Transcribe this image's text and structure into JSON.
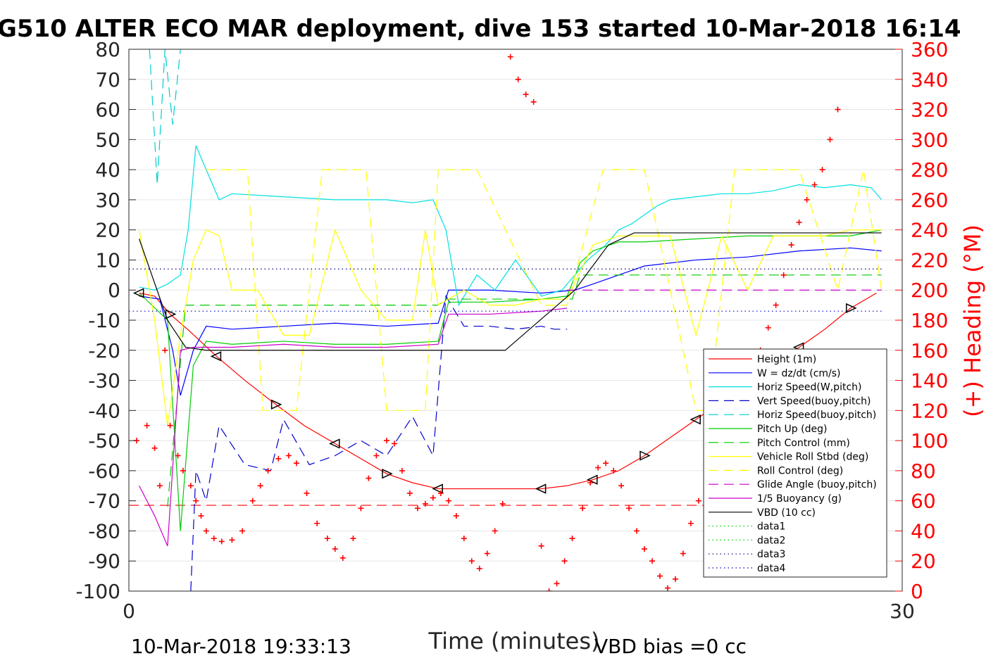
{
  "chart_data": {
    "type": "line",
    "title": "G510 ALTER ECO MAR deployment, dive 153 started 10-Mar-2018 16:14",
    "xlabel": "Time (minutes)",
    "ylabel_right": "(+) Heading (°M)",
    "xlim": [
      0,
      30
    ],
    "ylim": [
      -100,
      80
    ],
    "ylim_right": [
      0,
      360
    ],
    "x_ticks": [
      "0",
      "30"
    ],
    "y_ticks": [
      "80",
      "70",
      "60",
      "50",
      "40",
      "30",
      "20",
      "10",
      "0",
      "-10",
      "-20",
      "-30",
      "-40",
      "-50",
      "-60",
      "-70",
      "-80",
      "-90",
      "-100"
    ],
    "y_right_ticks": [
      "360",
      "340",
      "320",
      "300",
      "280",
      "260",
      "240",
      "220",
      "200",
      "180",
      "160",
      "140",
      "120",
      "100",
      "80",
      "60",
      "40",
      "20",
      "0"
    ],
    "grid": "horizontal",
    "legend_position": "lower-right",
    "footer_left": "10-Mar-2018 19:33:13",
    "footer_right": "VBD bias =0 cc",
    "series": [
      {
        "name": "Height (1m)",
        "color": "#ff0000",
        "style": "solid",
        "x": [
          0.4,
          1.0,
          1.6,
          2.4,
          3.4,
          4.5,
          5.7,
          6.8,
          8.0,
          9.0,
          10.0,
          11.0,
          12.0,
          14.0,
          16.0,
          17.0,
          18.0,
          19.0,
          20.0,
          21.0,
          22.0,
          23.0,
          24.0,
          25.0,
          26.0,
          27.0,
          28.0,
          29.0
        ],
        "y": [
          -1,
          -2,
          -8,
          -14,
          -22,
          -30,
          -38,
          -45,
          -51,
          -56,
          -61,
          -64,
          -66,
          -66,
          -66,
          -65,
          -63,
          -60,
          -55,
          -49,
          -43,
          -37,
          -31,
          -25,
          -19,
          -13,
          -6,
          -1
        ]
      },
      {
        "name": "W = dz/dt (cm/s)",
        "color": "#0000ff",
        "style": "solid",
        "x": [
          0.4,
          1.2,
          1.7,
          2.0,
          2.5,
          3,
          4,
          6,
          8,
          10,
          12,
          12.4,
          14,
          16,
          17.3,
          18,
          19,
          20,
          22,
          24,
          26,
          28,
          29.2
        ],
        "y": [
          -2,
          -3,
          -20,
          -35,
          -20,
          -12,
          -13,
          -12,
          -11,
          -12,
          -11,
          0,
          0,
          -1,
          0,
          2,
          5,
          8,
          10,
          11,
          13,
          14,
          13
        ]
      },
      {
        "name": "Horiz Speed(W,pitch)",
        "color": "#00e0e0",
        "style": "solid",
        "x": [
          0.4,
          1,
          1.5,
          2,
          2.3,
          2.6,
          3,
          3.5,
          4,
          6,
          8,
          10,
          11,
          11.8,
          12.3,
          12.8,
          13.5,
          14.2,
          15,
          16,
          16.8,
          17.3,
          17.8,
          18.5,
          19,
          19.5,
          20,
          20.5,
          21,
          22,
          23,
          24,
          25,
          26,
          27,
          28,
          28.8,
          29.2
        ],
        "y": [
          1,
          0,
          2,
          5,
          20,
          48,
          40,
          30,
          32,
          31,
          30,
          30,
          29,
          30,
          20,
          -5,
          5,
          0,
          10,
          -2,
          0,
          5,
          10,
          15,
          20,
          22,
          25,
          28,
          30,
          31,
          32,
          32,
          33,
          35,
          34,
          35,
          34,
          30
        ]
      },
      {
        "name": "Vert Speed(buoy,pitch)",
        "color": "#0000cc",
        "style": "dash",
        "x": [
          2.4,
          2.6,
          3,
          3.5,
          4.5,
          5.5,
          6,
          7,
          8,
          9,
          10,
          11,
          11.8,
          12.3,
          13,
          14,
          15,
          16,
          16.5,
          17
        ],
        "y": [
          -100,
          -60,
          -70,
          -45,
          -58,
          -60,
          -43,
          -58,
          -55,
          -50,
          -55,
          -42,
          -55,
          -2,
          -12,
          -12,
          -13,
          -12,
          -13,
          -13
        ]
      },
      {
        "name": "Horiz Speed(buoy,pitch)",
        "color": "#00cccc",
        "style": "dash",
        "x": [
          0.8,
          1.1,
          1.4,
          1.7,
          2.0
        ],
        "y": [
          80,
          35,
          80,
          55,
          80
        ]
      },
      {
        "name": "Pitch Up (deg)",
        "color": "#00cc00",
        "style": "solid",
        "x": [
          0.4,
          1.5,
          2,
          2.5,
          3,
          4,
          6,
          8,
          10,
          12,
          12.4,
          14,
          16,
          17,
          17.5,
          18,
          19,
          20,
          22,
          24,
          26,
          28,
          29.2
        ],
        "y": [
          -1,
          -10,
          -80,
          -25,
          -17,
          -18,
          -17,
          -18,
          -18,
          -17,
          -4,
          -4,
          -3,
          -2,
          9,
          13,
          16,
          16,
          17,
          18,
          18,
          18,
          20
        ]
      },
      {
        "name": "Pitch Control (mm)",
        "color": "#00cc00",
        "style": "dash",
        "x": [
          1.5,
          2.2,
          2.8,
          12.0,
          12.3,
          17.2,
          17.5,
          29.2
        ],
        "y": [
          -72,
          -5,
          -5,
          -5,
          -3,
          -3,
          5,
          5
        ]
      },
      {
        "name": "Vehicle Roll Stbd (deg)",
        "color": "#ffff00",
        "style": "solid",
        "x": [
          0.4,
          1.0,
          1.5,
          2,
          2.5,
          3,
          3.5,
          4,
          5,
          6,
          7,
          8,
          9,
          10,
          11,
          11.5,
          12,
          13,
          14,
          15,
          16,
          17,
          18,
          19,
          20,
          21,
          22,
          23,
          24,
          25,
          26,
          27,
          28,
          29.2
        ],
        "y": [
          20,
          -10,
          -45,
          -15,
          10,
          20,
          18,
          0,
          0,
          -15,
          -15,
          20,
          0,
          -10,
          -10,
          20,
          -5,
          0,
          -5,
          -5,
          -3,
          -3,
          15,
          18,
          18,
          18,
          -15,
          18,
          0,
          18,
          18,
          18,
          20,
          20
        ]
      },
      {
        "name": "Roll Control (deg)",
        "color": "#ffff00",
        "style": "dash",
        "x": [
          3,
          3.6,
          4.6,
          5.2,
          6.5,
          7.5,
          9.2,
          10,
          11.5,
          12,
          13.5,
          16,
          17,
          18.4,
          19,
          20,
          22,
          22.5,
          23.5,
          24.5,
          26,
          27.5,
          28.5,
          29.2
        ],
        "y": [
          40,
          40,
          40,
          -40,
          -40,
          40,
          40,
          -40,
          -40,
          40,
          40,
          -5,
          -5,
          40,
          40,
          40,
          -40,
          -40,
          40,
          40,
          40,
          0,
          40,
          0
        ]
      },
      {
        "name": "Glide Angle (buoy,pitch)",
        "color": "#cc00cc",
        "style": "dash",
        "x": [
          17.0,
          29.2
        ],
        "y": [
          0,
          0
        ]
      },
      {
        "name": "1/5 Buoyancy (g)",
        "color": "#cc00cc",
        "style": "solid",
        "x": [
          0.4,
          1.0,
          1.5,
          2,
          2.5,
          3,
          4,
          6,
          8,
          10,
          12,
          12.4,
          14,
          16,
          17
        ],
        "y": [
          -65,
          -75,
          -85,
          -20,
          -19,
          -19,
          -19,
          -18,
          -19,
          -19,
          -18,
          -8,
          -8,
          -7,
          -6
        ]
      },
      {
        "name": "VBD (10 cc)",
        "color": "#000000",
        "style": "solid",
        "x": [
          0.4,
          1.5,
          2.2,
          3,
          12,
          14.6,
          17.3,
          18.6,
          19.6,
          29.2
        ],
        "y": [
          17,
          -10,
          -19,
          -20,
          -20,
          -20,
          0,
          15,
          19,
          19
        ]
      },
      {
        "name": "data1",
        "color": "#00cc00",
        "style": "dot",
        "x": [],
        "y": []
      },
      {
        "name": "data2",
        "color": "#00cc00",
        "style": "dot",
        "x": [],
        "y": []
      },
      {
        "name": "data3",
        "color": "#000080",
        "style": "dot",
        "x": [
          0,
          29.2
        ],
        "y": [
          7,
          7
        ]
      },
      {
        "name": "data4",
        "color": "#0000cc",
        "style": "dot",
        "x": [
          0,
          29.2
        ],
        "y": [
          -7,
          -7
        ]
      }
    ],
    "extra_lines": [
      {
        "color": "#ff0000",
        "style": "dash",
        "x": [
          0,
          29.2
        ],
        "y": [
          -71.5,
          -71.5
        ]
      }
    ],
    "heading_points": {
      "color": "#ff0000",
      "marker": "+",
      "x": [
        0.3,
        0.7,
        1.0,
        1.2,
        1.4,
        1.6,
        1.9,
        2.1,
        2.4,
        2.6,
        2.8,
        3.0,
        3.3,
        3.6,
        4.0,
        4.4,
        4.8,
        5.1,
        5.4,
        5.8,
        6.2,
        6.5,
        6.9,
        7.3,
        7.7,
        8.0,
        8.3,
        8.7,
        9.0,
        9.3,
        9.6,
        10.0,
        10.3,
        10.6,
        10.9,
        11.2,
        11.5,
        11.8,
        12.1,
        12.4,
        12.7,
        13.0,
        13.3,
        13.6,
        13.9,
        14.2,
        14.5,
        14.8,
        15.1,
        15.4,
        15.7,
        16.0,
        16.3,
        16.6,
        16.9,
        17.2,
        17.6,
        17.9,
        18.2,
        18.5,
        18.8,
        19.1,
        19.4,
        19.7,
        20.0,
        20.3,
        20.6,
        20.9,
        21.2,
        21.5,
        21.8,
        22.1,
        22.4,
        22.7,
        23.0,
        23.3,
        23.6,
        23.9,
        24.2,
        24.5,
        24.8,
        25.1,
        25.4,
        25.7,
        26.0,
        26.3,
        26.6,
        26.9,
        27.2,
        27.5
      ],
      "y": [
        100,
        110,
        95,
        70,
        160,
        110,
        90,
        80,
        70,
        60,
        50,
        40,
        35,
        33,
        34,
        40,
        60,
        70,
        80,
        88,
        90,
        85,
        65,
        45,
        35,
        28,
        22,
        35,
        55,
        75,
        90,
        100,
        98,
        80,
        65,
        55,
        58,
        62,
        65,
        60,
        50,
        35,
        20,
        15,
        25,
        40,
        58,
        355,
        340,
        330,
        325,
        30,
        0,
        5,
        20,
        35,
        55,
        72,
        82,
        85,
        80,
        70,
        55,
        40,
        28,
        20,
        10,
        2,
        8,
        25,
        45,
        60,
        72,
        75,
        70,
        60,
        120,
        130,
        145,
        160,
        175,
        190,
        210,
        230,
        245,
        260,
        270,
        280,
        300,
        320
      ]
    },
    "markers": {
      "color": "#000000",
      "marker": "triangle",
      "on_series": "Height (1m)"
    }
  }
}
